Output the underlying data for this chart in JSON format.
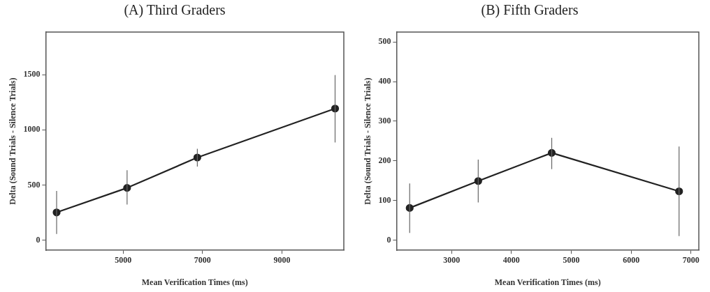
{
  "chart_data": [
    {
      "type": "line",
      "title": "(A) Third Graders",
      "xlabel": "Mean Verification Times (ms)",
      "ylabel": "Delta (Sound Trials - Silence Trials)",
      "x": [
        3325,
        5100,
        6870,
        10340
      ],
      "values": [
        253,
        475,
        750,
        1193
      ],
      "errors": [
        [
          58,
          447
        ],
        [
          324,
          635
        ],
        [
          668,
          828
        ],
        [
          886,
          1496
        ]
      ],
      "color": "#222222",
      "xlim": [
        3050,
        10560
      ],
      "ylim": [
        -90,
        1885
      ],
      "xticks": [
        5000,
        7000,
        9000
      ],
      "yticks": [
        0,
        500,
        1000,
        1500
      ],
      "grid": false,
      "legend": false,
      "marker": "circle",
      "line_style": "solid"
    },
    {
      "type": "line",
      "title": "(B) Fifth Graders",
      "xlabel": "Mean Verification Times (ms)",
      "ylabel": "Delta (Sound Trials - Silence Trials)",
      "x": [
        2300,
        3445,
        4673,
        6800
      ],
      "values": [
        81,
        149,
        220,
        123
      ],
      "errors": [
        [
          18,
          143
        ],
        [
          95,
          203
        ],
        [
          179,
          258
        ],
        [
          10,
          236
        ]
      ],
      "color": "#222222",
      "xlim": [
        2080,
        7130
      ],
      "ylim": [
        -26,
        525
      ],
      "xticks": [
        3000,
        4000,
        5000,
        6000,
        7000
      ],
      "yticks": [
        0,
        100,
        200,
        300,
        400,
        500
      ],
      "grid": false,
      "legend": false,
      "marker": "circle",
      "line_style": "solid"
    }
  ]
}
